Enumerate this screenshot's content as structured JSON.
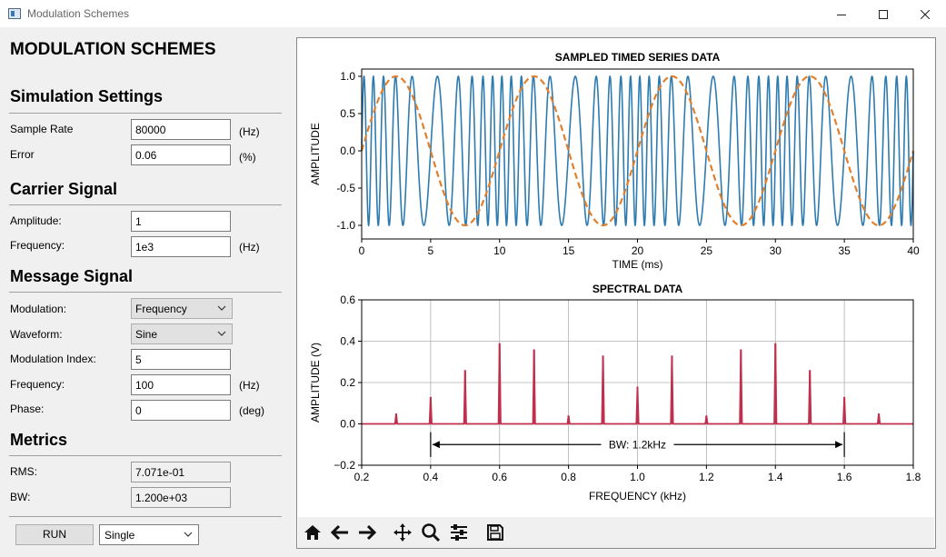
{
  "window": {
    "title": "Modulation Schemes"
  },
  "heading": "MODULATION SCHEMES",
  "simulation": {
    "title": "Simulation Settings",
    "sample_rate_label": "Sample Rate",
    "sample_rate": "80000",
    "sample_rate_unit": "(Hz)",
    "error_label": "Error",
    "error": "0.06",
    "error_unit": "(%)"
  },
  "carrier": {
    "title": "Carrier Signal",
    "amplitude_label": "Amplitude:",
    "amplitude": "1",
    "frequency_label": "Frequency:",
    "frequency": "1e3",
    "frequency_unit": "(Hz)"
  },
  "message": {
    "title": "Message Signal",
    "modulation_label": "Modulation:",
    "modulation": "Frequency",
    "waveform_label": "Waveform:",
    "waveform": "Sine",
    "index_label": "Modulation Index:",
    "index": "5",
    "frequency_label": "Frequency:",
    "frequency": "100",
    "frequency_unit": "(Hz)",
    "phase_label": "Phase:",
    "phase": "0",
    "phase_unit": "(deg)"
  },
  "metrics": {
    "title": "Metrics",
    "rms_label": "RMS:",
    "rms": "7.071e-01",
    "bw_label": "BW:",
    "bw": "1.200e+03"
  },
  "controls": {
    "run_label": "RUN",
    "run_mode": "Single"
  },
  "toolbar": {
    "icons": [
      "home-icon",
      "back-arrow-icon",
      "forward-arrow-icon",
      "pan-icon",
      "zoom-icon",
      "configure-subplots-icon",
      "save-icon"
    ]
  },
  "colors": {
    "carrier": "#2e7bb0",
    "message": "#e07f2c",
    "spectrum": "#c0304e"
  },
  "chart_data": [
    {
      "type": "line",
      "title": "SAMPLED TIMED SERIES DATA",
      "xlabel": "TIME (ms)",
      "ylabel": "AMPLITUDE",
      "xlim": [
        0,
        40
      ],
      "ylim": [
        -1.0,
        1.0
      ],
      "xticks": [
        "0",
        "5",
        "10",
        "15",
        "20",
        "25",
        "30",
        "35",
        "40"
      ],
      "yticks": [
        "1.0",
        "0.5",
        "0.0",
        "-0.5",
        "-1.0"
      ],
      "grid": false,
      "series": [
        {
          "style": "solid",
          "color": "#2e7bb0",
          "formula": "sin(2*pi*1*t + 5*sin(2*pi*0.1*t))"
        },
        {
          "style": "dashed",
          "color": "#e07f2c",
          "formula": "sin(2*pi*0.1*t)"
        }
      ]
    },
    {
      "type": "bar",
      "title": "SPECTRAL DATA",
      "xlabel": "FREQUENCY (kHz)",
      "ylabel": "AMPLITUDE (V)",
      "xlim": [
        0.2,
        1.8
      ],
      "ylim": [
        -0.2,
        0.6
      ],
      "xticks": [
        "0.2",
        "0.4",
        "0.6",
        "0.8",
        "1.0",
        "1.2",
        "1.4",
        "1.6",
        "1.8"
      ],
      "yticks": [
        "0.6",
        "0.4",
        "0.2",
        "0.0",
        "−0.2"
      ],
      "grid": true,
      "x": [
        0.3,
        0.4,
        0.5,
        0.6,
        0.7,
        0.8,
        0.9,
        1.0,
        1.1,
        1.2,
        1.3,
        1.4,
        1.5,
        1.6,
        1.7
      ],
      "values": [
        0.05,
        0.13,
        0.26,
        0.39,
        0.36,
        0.04,
        0.33,
        0.18,
        0.33,
        0.04,
        0.36,
        0.39,
        0.26,
        0.13,
        0.05
      ],
      "annotation": {
        "text": "BW: 1.2kHz",
        "from": 0.4,
        "to": 1.6
      }
    }
  ]
}
